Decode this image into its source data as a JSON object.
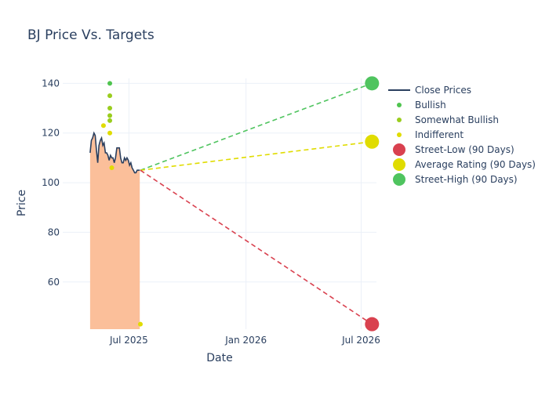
{
  "chart_data": {
    "type": "line",
    "title": "BJ Price Vs. Targets",
    "xlabel": "Date",
    "ylabel": "Price",
    "x_range": [
      "2025-03-19",
      "2026-07-25"
    ],
    "ylim": [
      41,
      142
    ],
    "y_ticks": [
      60,
      80,
      100,
      120,
      140
    ],
    "x_ticks": [
      {
        "date": "2025-07-01",
        "label": "Jul 2025"
      },
      {
        "date": "2026-01-01",
        "label": "Jan 2026"
      },
      {
        "date": "2026-07-01",
        "label": "Jul 2026"
      }
    ],
    "grid": true,
    "legend_position": "right",
    "colors": {
      "close": "#2a3f5f",
      "fill": "#fbbf9a",
      "bullish": "#4fc44f",
      "somewhat_bullish": "#9acd1e",
      "indifferent": "#e0dc00",
      "street_low": "#d9414f",
      "average": "#e0dc00",
      "street_high": "#4fc45f"
    },
    "close_prices": {
      "name": "Close Prices",
      "x": [
        "2025-05-01",
        "2025-05-03",
        "2025-05-05",
        "2025-05-07",
        "2025-05-09",
        "2025-05-11",
        "2025-05-13",
        "2025-05-15",
        "2025-05-17",
        "2025-05-19",
        "2025-05-21",
        "2025-05-23",
        "2025-05-25",
        "2025-05-27",
        "2025-05-29",
        "2025-05-31",
        "2025-06-02",
        "2025-06-04",
        "2025-06-06",
        "2025-06-08",
        "2025-06-10",
        "2025-06-12",
        "2025-06-14",
        "2025-06-16",
        "2025-06-18",
        "2025-06-20",
        "2025-06-22",
        "2025-06-24",
        "2025-06-26",
        "2025-06-28",
        "2025-06-30",
        "2025-07-02",
        "2025-07-04",
        "2025-07-06",
        "2025-07-08",
        "2025-07-10",
        "2025-07-12",
        "2025-07-14",
        "2025-07-16",
        "2025-07-18"
      ],
      "y": [
        112,
        117,
        118,
        120,
        119,
        113,
        108,
        115,
        117,
        118,
        115,
        116,
        112,
        112,
        111,
        109,
        111,
        110,
        110,
        108,
        110,
        114,
        114,
        114,
        110,
        108,
        108,
        110,
        109,
        110,
        109,
        107,
        108,
        106,
        105,
        104,
        104,
        105,
        105,
        105
      ]
    },
    "bullish": {
      "name": "Bullish",
      "x": [
        "2025-06-01"
      ],
      "y": [
        140
      ]
    },
    "somewhat_bullish": {
      "name": "Somewhat Bullish",
      "x": [
        "2025-06-01",
        "2025-06-01",
        "2025-06-01",
        "2025-06-01"
      ],
      "y": [
        135,
        130,
        127,
        125
      ]
    },
    "indifferent": {
      "name": "Indifferent",
      "x": [
        "2025-05-22",
        "2025-06-01",
        "2025-06-04",
        "2025-07-19"
      ],
      "y": [
        123,
        120,
        106,
        43
      ]
    },
    "street_low": {
      "name": "Street-Low (90 Days)",
      "x": "2026-07-18",
      "y": 43
    },
    "average_rating": {
      "name": "Average Rating (90 Days)",
      "x": "2026-07-18",
      "y": 116.5
    },
    "street_high": {
      "name": "Street-High (90 Days)",
      "x": "2026-07-18",
      "y": 140
    },
    "projection_start": {
      "x": "2025-07-19",
      "y": 105
    },
    "legend": [
      {
        "key": "close",
        "label": "Close Prices",
        "kind": "line"
      },
      {
        "key": "bullish",
        "label": "Bullish",
        "kind": "dot"
      },
      {
        "key": "somewhat_bullish",
        "label": "Somewhat Bullish",
        "kind": "dot"
      },
      {
        "key": "indifferent",
        "label": "Indifferent",
        "kind": "dot"
      },
      {
        "key": "street_low",
        "label": "Street-Low (90 Days)",
        "kind": "big"
      },
      {
        "key": "average",
        "label": "Average Rating (90 Days)",
        "kind": "big"
      },
      {
        "key": "street_high",
        "label": "Street-High (90 Days)",
        "kind": "big"
      }
    ]
  }
}
